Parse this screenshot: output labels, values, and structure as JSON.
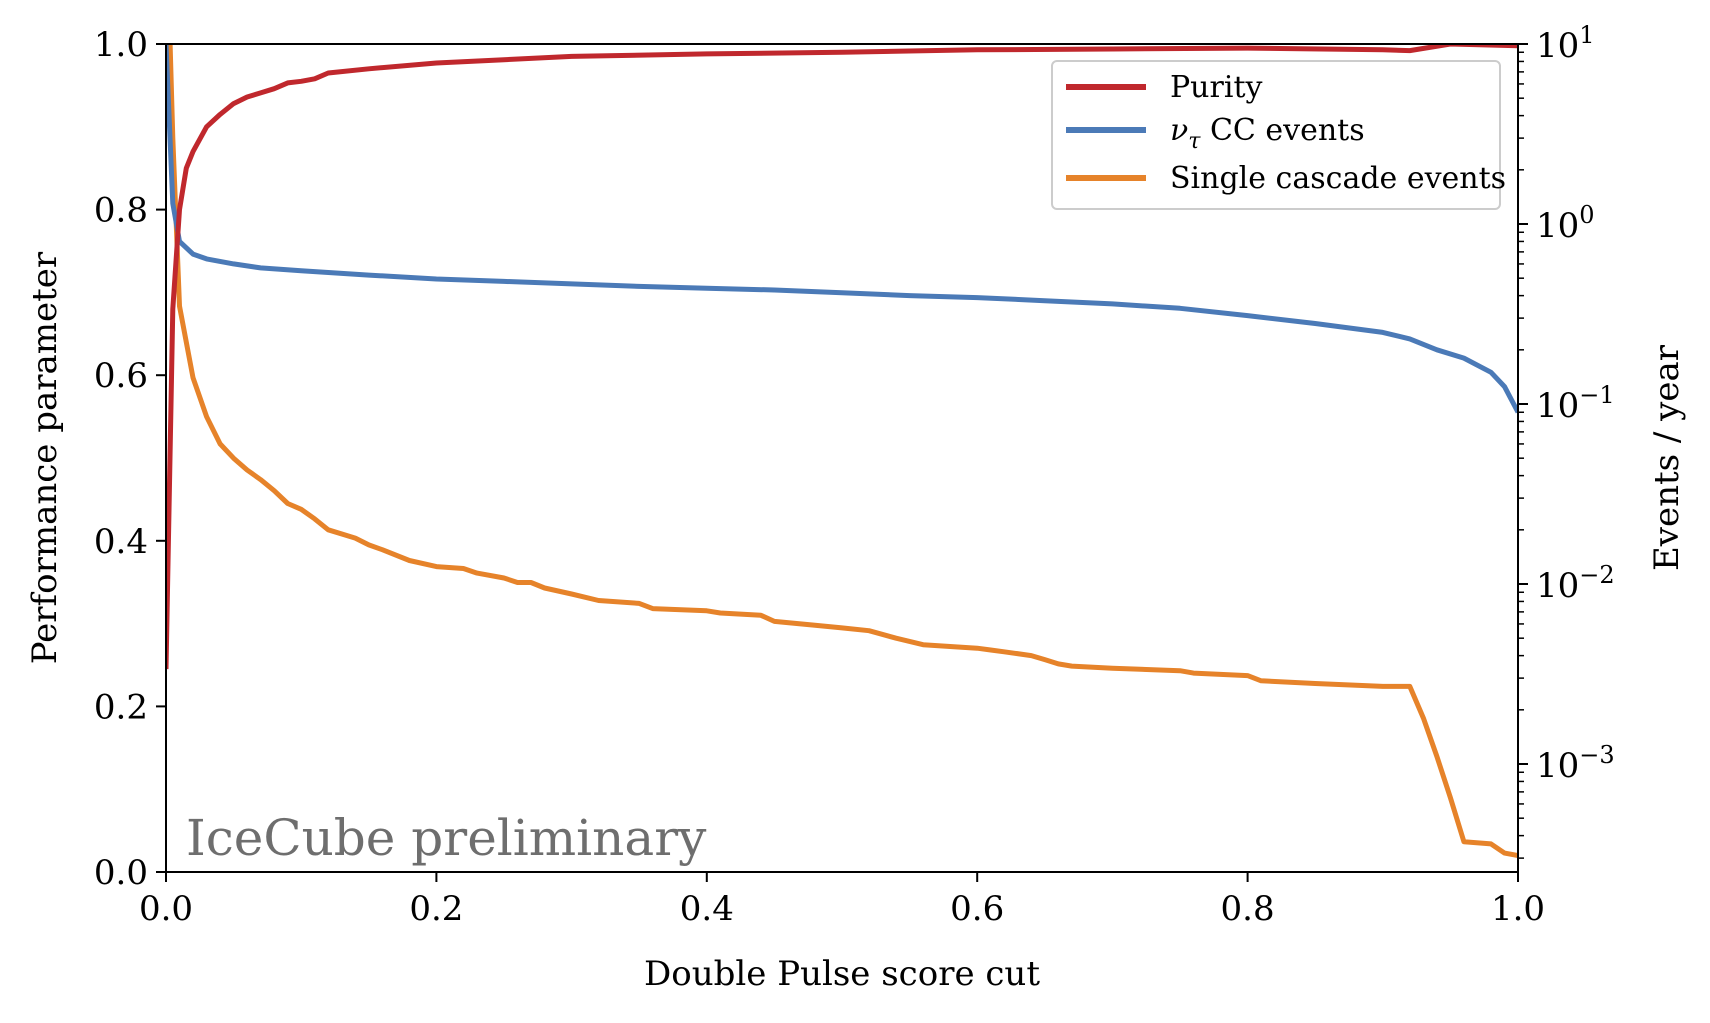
{
  "chart_data": {
    "type": "line",
    "title": "",
    "xlabel": "Double Pulse score cut",
    "ylabel_left": "Performance parameter",
    "ylabel_right": "Events / year",
    "xlim": [
      0.0,
      1.0
    ],
    "ylim_left": [
      0.0,
      1.0
    ],
    "ylim_right_log10": [
      -3.6,
      1.0
    ],
    "grid": false,
    "legend_position": "top-right",
    "annotation": "IceCube preliminary",
    "x_ticks": [
      {
        "value": 0.0,
        "label": "0.0"
      },
      {
        "value": 0.2,
        "label": "0.2"
      },
      {
        "value": 0.4,
        "label": "0.4"
      },
      {
        "value": 0.6,
        "label": "0.6"
      },
      {
        "value": 0.8,
        "label": "0.8"
      },
      {
        "value": 1.0,
        "label": "1.0"
      }
    ],
    "y_ticks_left": [
      {
        "value": 0.0,
        "label": "0.0"
      },
      {
        "value": 0.2,
        "label": "0.2"
      },
      {
        "value": 0.4,
        "label": "0.4"
      },
      {
        "value": 0.6,
        "label": "0.6"
      },
      {
        "value": 0.8,
        "label": "0.8"
      },
      {
        "value": 1.0,
        "label": "1.0"
      }
    ],
    "y_ticks_right": [
      {
        "exp": 1,
        "base": "10",
        "sup": "1"
      },
      {
        "exp": 0,
        "base": "10",
        "sup": "0"
      },
      {
        "exp": -1,
        "base": "10",
        "sup": "−1"
      },
      {
        "exp": -2,
        "base": "10",
        "sup": "−2"
      },
      {
        "exp": -3,
        "base": "10",
        "sup": "−3"
      }
    ],
    "series": [
      {
        "name": "Purity",
        "axis": "left",
        "color": "#c0282d",
        "x": [
          0.0,
          0.005,
          0.01,
          0.015,
          0.02,
          0.03,
          0.04,
          0.05,
          0.06,
          0.07,
          0.08,
          0.09,
          0.1,
          0.11,
          0.12,
          0.15,
          0.2,
          0.25,
          0.3,
          0.4,
          0.5,
          0.6,
          0.7,
          0.8,
          0.9,
          0.92,
          0.95,
          1.0
        ],
        "values": [
          0.245,
          0.68,
          0.8,
          0.85,
          0.87,
          0.9,
          0.915,
          0.928,
          0.936,
          0.941,
          0.946,
          0.953,
          0.955,
          0.958,
          0.965,
          0.97,
          0.977,
          0.981,
          0.985,
          0.988,
          0.99,
          0.993,
          0.994,
          0.995,
          0.993,
          0.992,
          1.0,
          0.998
        ]
      },
      {
        "name": "ν_τ CC events",
        "label_base": "ν",
        "label_sub": "τ",
        "label_rest": " CC events",
        "axis": "right",
        "color": "#4b7ab7",
        "x": [
          0.0,
          0.005,
          0.01,
          0.02,
          0.03,
          0.05,
          0.07,
          0.1,
          0.15,
          0.2,
          0.25,
          0.3,
          0.35,
          0.4,
          0.45,
          0.5,
          0.55,
          0.6,
          0.65,
          0.7,
          0.75,
          0.8,
          0.85,
          0.9,
          0.92,
          0.94,
          0.96,
          0.98,
          0.99,
          1.0
        ],
        "values": [
          10.0,
          1.3,
          0.8,
          0.68,
          0.64,
          0.6,
          0.57,
          0.55,
          0.52,
          0.495,
          0.48,
          0.465,
          0.45,
          0.44,
          0.43,
          0.415,
          0.4,
          0.39,
          0.375,
          0.36,
          0.34,
          0.31,
          0.28,
          0.25,
          0.23,
          0.2,
          0.18,
          0.15,
          0.125,
          0.09
        ]
      },
      {
        "name": "Single cascade events",
        "axis": "right",
        "color": "#e6832a",
        "x": [
          0.003,
          0.005,
          0.01,
          0.02,
          0.03,
          0.04,
          0.05,
          0.06,
          0.07,
          0.08,
          0.09,
          0.1,
          0.11,
          0.12,
          0.14,
          0.15,
          0.16,
          0.18,
          0.2,
          0.22,
          0.23,
          0.25,
          0.26,
          0.27,
          0.28,
          0.3,
          0.32,
          0.35,
          0.36,
          0.4,
          0.41,
          0.44,
          0.45,
          0.48,
          0.5,
          0.52,
          0.54,
          0.55,
          0.56,
          0.6,
          0.61,
          0.62,
          0.64,
          0.65,
          0.66,
          0.67,
          0.7,
          0.75,
          0.76,
          0.8,
          0.81,
          0.85,
          0.9,
          0.92,
          0.93,
          0.94,
          0.95,
          0.96,
          0.98,
          0.99,
          1.0
        ],
        "values": [
          10.0,
          3.0,
          0.35,
          0.14,
          0.085,
          0.06,
          0.05,
          0.043,
          0.038,
          0.033,
          0.028,
          0.026,
          0.023,
          0.02,
          0.018,
          0.0165,
          0.0155,
          0.0135,
          0.0125,
          0.0122,
          0.0115,
          0.0108,
          0.0102,
          0.0102,
          0.0095,
          0.0088,
          0.0081,
          0.0078,
          0.0073,
          0.0071,
          0.0069,
          0.0067,
          0.0062,
          0.0059,
          0.0057,
          0.0055,
          0.005,
          0.0048,
          0.0046,
          0.0044,
          0.0043,
          0.0042,
          0.004,
          0.0038,
          0.0036,
          0.0035,
          0.0034,
          0.0033,
          0.0032,
          0.0031,
          0.0029,
          0.0028,
          0.0027,
          0.0027,
          0.0018,
          0.0011,
          0.00065,
          0.00037,
          0.00036,
          0.00032,
          0.00031
        ]
      }
    ]
  }
}
